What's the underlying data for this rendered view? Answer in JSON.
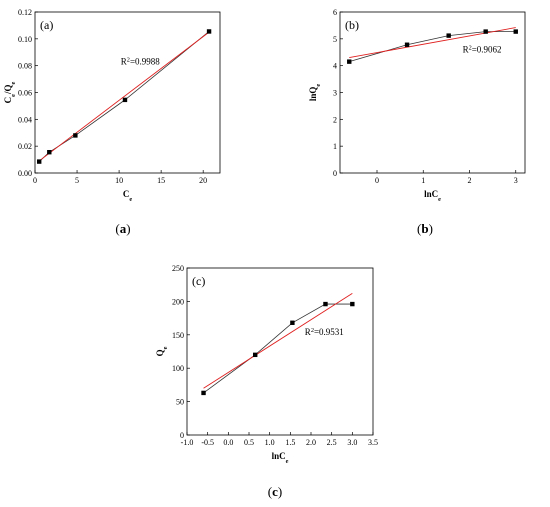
{
  "figure": {
    "captions": [
      "(a)",
      "(b)",
      "(c)"
    ],
    "caption_parts": [
      {
        "open": "(",
        "letter": "a",
        "close": ")"
      },
      {
        "open": "(",
        "letter": "b",
        "close": ")"
      },
      {
        "open": "(",
        "letter": "c",
        "close": ")"
      }
    ]
  },
  "chart_data": [
    {
      "type": "scatter",
      "panel_label": "(a)",
      "xlabel": "C",
      "xlabel_sub": "e",
      "ylabel": "C",
      "ylabel_sub": "e",
      "ylabel_mid": "/Q",
      "ylabel_sub2": "e",
      "xlim": [
        0,
        22
      ],
      "ylim": [
        0.0,
        0.12
      ],
      "xticks": [
        "0",
        "5",
        "10",
        "15",
        "20"
      ],
      "yticks": [
        "0.00",
        "0.02",
        "0.04",
        "0.06",
        "0.08",
        "0.10",
        "0.12"
      ],
      "x": [
        0.5,
        1.7,
        4.8,
        10.7,
        20.7
      ],
      "y": [
        0.0085,
        0.0155,
        0.028,
        0.0545,
        0.1055
      ],
      "connect_points": true,
      "fit": {
        "x": [
          0.5,
          20.7
        ],
        "y": [
          0.009,
          0.105
        ]
      },
      "annotation": {
        "text": "R",
        "sup": "2",
        "rest": "=0.9988",
        "x": 10.2,
        "y": 0.081
      },
      "grid": false,
      "colors": {
        "points": "#000000",
        "fit": "#e02020",
        "connect": "#333333"
      }
    },
    {
      "type": "scatter",
      "panel_label": "(b)",
      "xlabel": "lnC",
      "xlabel_sub": "e",
      "ylabel": "lnQ",
      "ylabel_sub": "e",
      "xlim": [
        -0.8,
        3.2
      ],
      "ylim": [
        0,
        6
      ],
      "xticks": [
        "0",
        "1",
        "2",
        "3"
      ],
      "xtick_values": [
        0,
        1,
        2,
        3
      ],
      "yticks": [
        "0",
        "1",
        "2",
        "3",
        "4",
        "5",
        "6"
      ],
      "x": [
        -0.6,
        0.65,
        1.55,
        2.35,
        3.0
      ],
      "y": [
        4.15,
        4.78,
        5.12,
        5.27,
        5.27
      ],
      "connect_points": true,
      "fit": {
        "x": [
          -0.6,
          3.0
        ],
        "y": [
          4.3,
          5.42
        ]
      },
      "annotation": {
        "text": "R",
        "sup": "2",
        "rest": "=0.9062",
        "x": 1.85,
        "y": 4.5
      },
      "grid": false,
      "colors": {
        "points": "#000000",
        "fit": "#e02020",
        "connect": "#333333"
      }
    },
    {
      "type": "scatter",
      "panel_label": "(c)",
      "xlabel": "lnC",
      "xlabel_sub": "e",
      "ylabel": "Q",
      "ylabel_sub": "e",
      "xlim": [
        -1.0,
        3.5
      ],
      "ylim": [
        0,
        250
      ],
      "xticks": [
        "-1.0",
        "-0.5",
        "0.0",
        "0.5",
        "1.0",
        "1.5",
        "2.0",
        "2.5",
        "3.0",
        "3.5"
      ],
      "yticks": [
        "0",
        "50",
        "100",
        "150",
        "200",
        "250"
      ],
      "x": [
        -0.6,
        0.65,
        1.55,
        2.35,
        3.0
      ],
      "y": [
        63,
        120,
        168,
        196,
        196
      ],
      "connect_points": true,
      "fit": {
        "x": [
          -0.6,
          3.0
        ],
        "y": [
          70,
          212
        ]
      },
      "annotation": {
        "text": "R",
        "sup": "2",
        "rest": "=0.9531",
        "x": 1.85,
        "y": 150
      },
      "grid": false,
      "colors": {
        "points": "#000000",
        "fit": "#e02020",
        "connect": "#333333"
      }
    }
  ]
}
